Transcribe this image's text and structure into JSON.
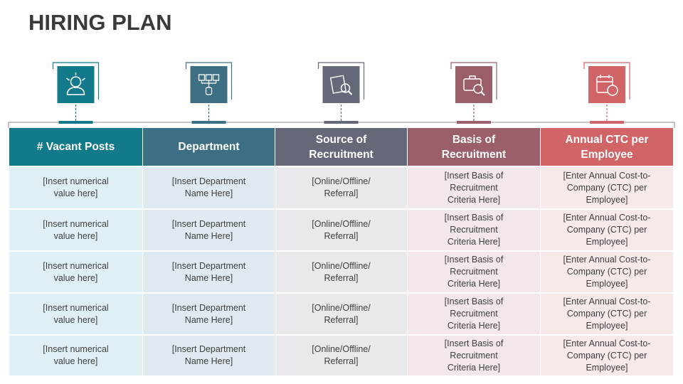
{
  "title": "HIRING PLAN",
  "table": {
    "headers": [
      "# Vacant Posts",
      "Department",
      "Source of Recruitment",
      "Basis of Recruitment",
      "Annual CTC per Employee"
    ],
    "rows": [
      [
        "[Insert numerical value here]",
        "[Insert Department Name Here]",
        "[Online/Offline/ Referral]",
        "[Insert Basis of Recruitment Criteria Here]",
        "[Enter Annual Cost-to-Company (CTC) per Employee]"
      ],
      [
        "[Insert numerical value here]",
        "[Insert Department Name Here]",
        "[Online/Offline/ Referral]",
        "[Insert Basis of Recruitment Criteria Here]",
        "[Enter Annual Cost-to-Company (CTC) per Employee]"
      ],
      [
        "[Insert numerical value here]",
        "[Insert Department Name Here]",
        "[Online/Offline/ Referral]",
        "[Insert Basis of Recruitment Criteria Here]",
        "[Enter Annual Cost-to-Company (CTC) per Employee]"
      ],
      [
        "[Insert numerical value here]",
        "[Insert Department Name Here]",
        "[Online/Offline/ Referral]",
        "[Insert Basis of Recruitment Criteria Here]",
        "[Enter Annual Cost-to-Company (CTC) per Employee]"
      ],
      [
        "[Insert numerical value here]",
        "[Insert Department Name Here]",
        "[Online/Offline/ Referral]",
        "[Insert Basis of Recruitment Criteria Here]",
        "[Enter Annual Cost-to-Company (CTC) per Employee]"
      ]
    ]
  }
}
